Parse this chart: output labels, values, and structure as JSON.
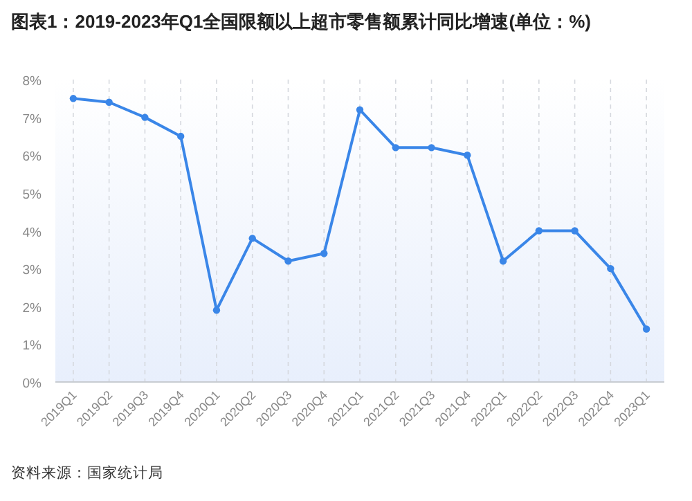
{
  "chart_data": {
    "type": "line",
    "title": "图表1：2019-2023年Q1全国限额以上超市零售额累计同比增速(单位：%)",
    "categories": [
      "2019Q1",
      "2019Q2",
      "2019Q3",
      "2019Q4",
      "2020Q1",
      "2020Q2",
      "2020Q3",
      "2020Q4",
      "2021Q1",
      "2021Q2",
      "2021Q3",
      "2021Q4",
      "2022Q1",
      "2022Q2",
      "2022Q3",
      "2022Q4",
      "2023Q1"
    ],
    "series": [
      {
        "color": "#3a86e8",
        "values": [
          7.5,
          7.4,
          7.0,
          6.5,
          1.9,
          3.8,
          3.2,
          3.4,
          7.2,
          6.2,
          6.2,
          6.0,
          3.2,
          4.0,
          4.0,
          3.0,
          1.4
        ]
      }
    ],
    "ylim": [
      0,
      8
    ],
    "yticks": [
      {
        "value": 0,
        "label": "0%"
      },
      {
        "value": 1,
        "label": "1%"
      },
      {
        "value": 2,
        "label": "2%"
      },
      {
        "value": 3,
        "label": "3%"
      },
      {
        "value": 4,
        "label": "4%"
      },
      {
        "value": 5,
        "label": "5%"
      },
      {
        "value": 6,
        "label": "6%"
      },
      {
        "value": 7,
        "label": "7%"
      },
      {
        "value": 8,
        "label": "8%"
      }
    ],
    "grid": "x",
    "marker": "circle",
    "line_style": "solid",
    "annotations": [
      "资料来源：国家统计局"
    ]
  }
}
